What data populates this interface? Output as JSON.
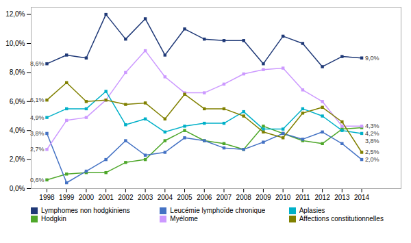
{
  "chart_data": {
    "type": "line",
    "x": [
      1998,
      1999,
      2000,
      2001,
      2002,
      2003,
      2004,
      2005,
      2006,
      2007,
      2008,
      2009,
      2010,
      2011,
      2012,
      2013,
      2014
    ],
    "series": [
      {
        "name": "Lymphomes non hodgkiniens",
        "color": "#1F3977",
        "values": [
          8.6,
          9.2,
          9.0,
          12.0,
          10.3,
          11.7,
          9.2,
          11.0,
          10.3,
          10.2,
          10.2,
          8.6,
          10.5,
          10.0,
          8.4,
          9.1,
          9.0
        ]
      },
      {
        "name": "Hodgkin",
        "color": "#4EA72A",
        "values": [
          0.6,
          1.0,
          1.1,
          1.1,
          1.8,
          2.0,
          3.3,
          4.0,
          3.3,
          3.1,
          2.7,
          4.3,
          3.8,
          3.3,
          3.1,
          4.1,
          4.2
        ]
      },
      {
        "name": "Leucémie lymphoïde chronique",
        "color": "#4472C4",
        "values": [
          3.8,
          0.4,
          1.2,
          2.0,
          3.3,
          2.3,
          2.5,
          3.5,
          3.3,
          2.8,
          2.7,
          3.2,
          3.8,
          3.4,
          3.9,
          3.1,
          2.0
        ]
      },
      {
        "name": "Myélome",
        "color": "#CC99FF",
        "values": [
          2.7,
          4.7,
          4.9,
          6.1,
          8.0,
          9.5,
          7.7,
          6.6,
          6.6,
          7.2,
          7.9,
          8.2,
          8.3,
          6.8,
          6.0,
          4.3,
          4.3
        ]
      },
      {
        "name": "Aplasies",
        "color": "#00B0C8",
        "values": [
          4.9,
          5.5,
          5.5,
          6.7,
          4.4,
          4.8,
          3.9,
          4.3,
          4.5,
          4.5,
          5.3,
          4.1,
          4.1,
          5.5,
          5.0,
          4.0,
          3.8
        ]
      },
      {
        "name": "Affections constitutionnelles",
        "color": "#808000",
        "values": [
          6.1,
          7.3,
          6.0,
          6.1,
          5.8,
          5.9,
          4.8,
          6.5,
          5.5,
          5.5,
          5.0,
          3.9,
          3.5,
          5.2,
          5.6,
          4.6,
          2.5
        ]
      }
    ],
    "xlim": [
      1997.2,
      2016.0
    ],
    "xticks": [
      1998,
      1999,
      2000,
      2001,
      2002,
      2003,
      2004,
      2005,
      2006,
      2007,
      2008,
      2009,
      2010,
      2011,
      2012,
      2013,
      2014
    ],
    "ylim": [
      0,
      12.5
    ],
    "yticks": [
      {
        "value": 0,
        "label": "0,0%"
      },
      {
        "value": 2,
        "label": "2,0%"
      },
      {
        "value": 4,
        "label": "4,0%"
      },
      {
        "value": 6,
        "label": "6,0%"
      },
      {
        "value": 8,
        "label": "8,0%"
      },
      {
        "value": 10,
        "label": "10,0%"
      },
      {
        "value": 12,
        "label": "12,0%"
      }
    ],
    "marker": "square",
    "grid": false,
    "legend": "bottom",
    "annotations": [
      {
        "text": "8,6%",
        "x": 1998,
        "y": 8.6
      },
      {
        "text": "6,1%",
        "x": 1998,
        "y": 6.1
      },
      {
        "text": "4,9%",
        "x": 1998,
        "y": 4.9
      },
      {
        "text": "2,7%",
        "x": 1998,
        "y": 2.7
      },
      {
        "text": "3,8%",
        "x": 1998,
        "y": 3.8
      },
      {
        "text": "0,6%",
        "x": 1998,
        "y": 0.6
      },
      {
        "text": "9,0%",
        "x": 2014,
        "y": 9.0
      },
      {
        "text": "4,3%",
        "x": 2014,
        "y": 4.3
      },
      {
        "text": "4,2%",
        "x": 2014,
        "y": 4.2
      },
      {
        "text": "3,8%",
        "x": 2014,
        "y": 3.8
      },
      {
        "text": "2,5%",
        "x": 2014,
        "y": 2.5
      },
      {
        "text": "2,0%",
        "x": 2014,
        "y": 2.0
      }
    ]
  }
}
